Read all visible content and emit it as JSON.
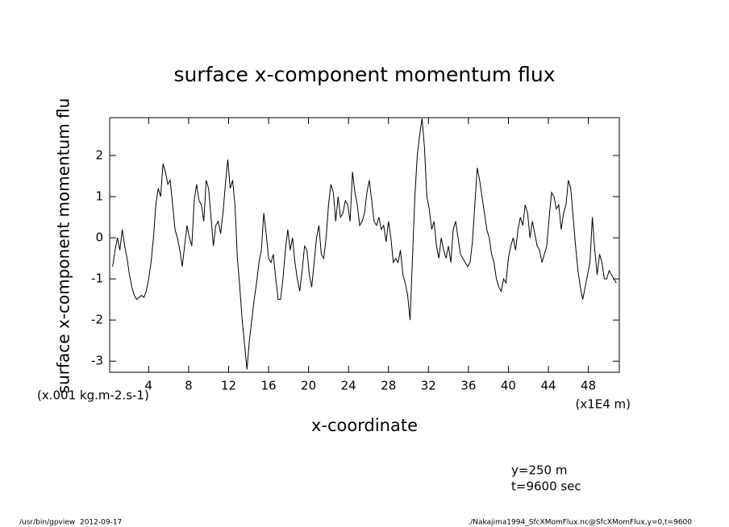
{
  "chart_data": {
    "type": "line",
    "title": "surface x-component momentum flux",
    "ylabel": "surface x-component momentum flu",
    "yunits": "(x.001 kg.m-2.s-1)",
    "xlabel": "x-coordinate",
    "xunits": "(x1E4 m)",
    "annotations": [
      "y=250 m",
      "t=9600 sec"
    ],
    "footer": [
      "/usr/bin/gpview  2012-09-17",
      "./Nakajima1994_SfcXMomFlux.nc@SfcXMomFlux,y=0,t=9600"
    ],
    "color": "#000000",
    "xlim": [
      0.1,
      51.1
    ],
    "ylim": [
      -3.27,
      2.92
    ],
    "xticks": [
      4,
      8,
      12,
      16,
      20,
      24,
      28,
      32,
      36,
      40,
      44,
      48
    ],
    "yticks": [
      -3,
      -2,
      -1,
      0,
      1,
      2
    ],
    "x": [
      0.4,
      0.64,
      0.88,
      1.12,
      1.36,
      1.6,
      1.84,
      2.08,
      2.32,
      2.56,
      2.8,
      3.04,
      3.28,
      3.52,
      3.76,
      4,
      4.24,
      4.48,
      4.72,
      4.96,
      5.2,
      5.44,
      5.68,
      5.92,
      6.16,
      6.4,
      6.64,
      6.88,
      7.12,
      7.36,
      7.6,
      7.84,
      8.08,
      8.32,
      8.56,
      8.8,
      9.04,
      9.28,
      9.52,
      9.76,
      10,
      10.24,
      10.48,
      10.72,
      10.96,
      11.2,
      11.44,
      11.68,
      11.92,
      12.16,
      12.4,
      12.64,
      12.88,
      13.12,
      13.36,
      13.6,
      13.84,
      14.08,
      14.32,
      14.56,
      14.8,
      15.04,
      15.28,
      15.52,
      15.76,
      16,
      16.24,
      16.48,
      16.72,
      16.96,
      17.2,
      17.44,
      17.68,
      17.92,
      18.16,
      18.4,
      18.64,
      18.88,
      19.12,
      19.36,
      19.6,
      19.84,
      20.08,
      20.32,
      20.56,
      20.8,
      21.04,
      21.28,
      21.52,
      21.76,
      22,
      22.24,
      22.48,
      22.72,
      22.96,
      23.2,
      23.44,
      23.68,
      23.92,
      24.16,
      24.4,
      24.64,
      24.88,
      25.12,
      25.36,
      25.6,
      25.84,
      26.08,
      26.32,
      26.56,
      26.8,
      27.04,
      27.28,
      27.52,
      27.76,
      28,
      28.24,
      28.48,
      28.72,
      28.96,
      29.2,
      29.44,
      29.68,
      29.92,
      30.16,
      30.4,
      30.64,
      30.88,
      31.12,
      31.36,
      31.6,
      31.84,
      32.08,
      32.32,
      32.56,
      32.8,
      33.04,
      33.28,
      33.52,
      33.76,
      34,
      34.24,
      34.48,
      34.72,
      34.96,
      35.2,
      35.44,
      35.68,
      35.92,
      36.16,
      36.4,
      36.64,
      36.88,
      37.12,
      37.36,
      37.6,
      37.84,
      38.08,
      38.32,
      38.56,
      38.8,
      39.04,
      39.28,
      39.52,
      39.76,
      40,
      40.24,
      40.48,
      40.72,
      40.96,
      41.2,
      41.44,
      41.68,
      41.92,
      42.16,
      42.4,
      42.64,
      42.88,
      43.12,
      43.36,
      43.6,
      43.84,
      44.08,
      44.32,
      44.56,
      44.8,
      45.04,
      45.28,
      45.52,
      45.76,
      46,
      46.24,
      46.48,
      46.72,
      46.96,
      47.2,
      47.44,
      47.68,
      47.92,
      48.16,
      48.4,
      48.64,
      48.88,
      49.12,
      49.36,
      49.6,
      49.84,
      50.08,
      50.32,
      50.56,
      50.8
    ],
    "values": [
      -0.7,
      -0.3,
      0,
      -0.3,
      0.2,
      -0.2,
      -0.5,
      -0.9,
      -1.2,
      -1.4,
      -1.5,
      -1.45,
      -1.4,
      -1.45,
      -1.3,
      -1.0,
      -0.6,
      0,
      0.8,
      1.2,
      1.0,
      1.8,
      1.6,
      1.3,
      1.4,
      0.8,
      0.2,
      0.0,
      -0.3,
      -0.7,
      -0.2,
      0.3,
      0.0,
      -0.2,
      0.9,
      1.3,
      0.9,
      0.8,
      0.4,
      1.4,
      1.2,
      0.5,
      -0.2,
      0.3,
      0.4,
      0.1,
      0.6,
      1.3,
      1.9,
      1.2,
      1.4,
      0.8,
      -0.5,
      -1.2,
      -2.0,
      -2.6,
      -3.2,
      -2.5,
      -2.0,
      -1.5,
      -1.1,
      -0.6,
      -0.3,
      0.6,
      0.1,
      -0.5,
      -0.6,
      -0.4,
      -1.0,
      -1.5,
      -1.5,
      -1.0,
      -0.3,
      0.2,
      -0.3,
      0.0,
      -0.6,
      -1.0,
      -1.3,
      -0.8,
      -0.2,
      -0.3,
      -0.9,
      -1.2,
      -0.6,
      0.0,
      0.3,
      -0.4,
      -0.5,
      0.0,
      0.8,
      1.3,
      1.1,
      0.4,
      1.0,
      0.5,
      0.6,
      0.9,
      0.8,
      0.4,
      1.6,
      1.1,
      0.8,
      0.3,
      0.4,
      0.6,
      1.1,
      1.4,
      0.9,
      0.4,
      0.3,
      0.5,
      0.2,
      0.3,
      -0.1,
      0.4,
      0.0,
      -0.6,
      -0.5,
      -0.6,
      -0.3,
      -0.9,
      -1.1,
      -1.4,
      -2.0,
      -0.5,
      1.0,
      2.0,
      2.5,
      2.9,
      2.2,
      1.0,
      0.7,
      0.2,
      0.4,
      -0.2,
      -0.5,
      0.0,
      -0.3,
      -0.5,
      -0.2,
      -0.6,
      0.2,
      0.4,
      0.0,
      -0.4,
      -0.5,
      -0.6,
      -0.7,
      -0.6,
      -0.1,
      0.8,
      1.7,
      1.4,
      1.0,
      0.6,
      0.2,
      0.0,
      -0.4,
      -0.6,
      -1.0,
      -1.2,
      -1.3,
      -1.0,
      -1.1,
      -0.5,
      -0.2,
      0.0,
      -0.3,
      0.2,
      0.5,
      0.3,
      0.8,
      0.6,
      0.0,
      0.4,
      0.1,
      -0.2,
      -0.3,
      -0.6,
      -0.4,
      -0.2,
      0.5,
      1.1,
      1.0,
      0.7,
      0.8,
      0.2,
      0.6,
      0.8,
      1.4,
      1.2,
      0.5,
      -0.2,
      -0.8,
      -1.2,
      -1.5,
      -1.2,
      -0.9,
      -0.6,
      0.5,
      -0.3,
      -0.9,
      -0.4,
      -0.6,
      -1.0,
      -1.0,
      -0.8,
      -0.9,
      -1.0,
      -1.1
    ]
  }
}
